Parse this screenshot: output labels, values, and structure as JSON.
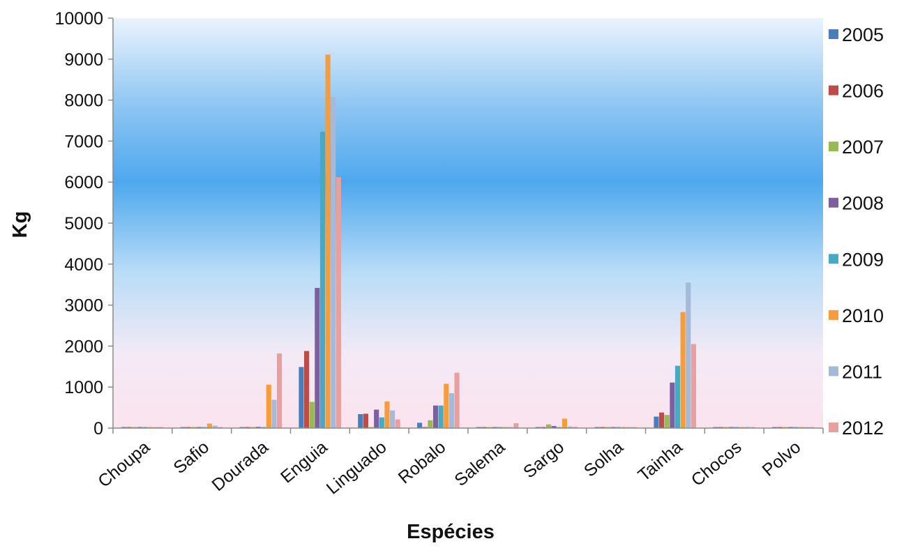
{
  "chart_data": {
    "type": "bar",
    "title": "",
    "xlabel": "Espécies",
    "ylabel": "Kg",
    "ylim": [
      0,
      10000
    ],
    "yticks": [
      0,
      1000,
      2000,
      3000,
      4000,
      5000,
      6000,
      7000,
      8000,
      9000,
      10000
    ],
    "grid": false,
    "legend_position": "right",
    "categories": [
      "Choupa",
      "Safio",
      "Dourada",
      "Enguia",
      "Linguado",
      "Robalo",
      "Salema",
      "Sargo",
      "Solha",
      "Tainha",
      "Chocos",
      "Polvo"
    ],
    "series": [
      {
        "name": "2005",
        "color": "#4a7ebb",
        "values": [
          0,
          0,
          0,
          1490,
          340,
          130,
          0,
          0,
          0,
          280,
          0,
          0
        ]
      },
      {
        "name": "2006",
        "color": "#be4b48",
        "values": [
          0,
          0,
          0,
          1880,
          350,
          0,
          0,
          0,
          0,
          380,
          0,
          0
        ]
      },
      {
        "name": "2007",
        "color": "#98b954",
        "values": [
          0,
          0,
          0,
          640,
          0,
          190,
          0,
          90,
          0,
          320,
          0,
          0
        ]
      },
      {
        "name": "2008",
        "color": "#7d5fa0",
        "values": [
          0,
          0,
          30,
          3420,
          450,
          550,
          0,
          50,
          0,
          1110,
          0,
          0
        ]
      },
      {
        "name": "2009",
        "color": "#46aac5",
        "values": [
          0,
          0,
          0,
          7230,
          260,
          550,
          0,
          0,
          0,
          1520,
          0,
          0
        ]
      },
      {
        "name": "2010",
        "color": "#f59d3d",
        "values": [
          0,
          110,
          1060,
          9110,
          650,
          1080,
          0,
          230,
          0,
          2830,
          0,
          0
        ]
      },
      {
        "name": "2011",
        "color": "#a5b9d9",
        "values": [
          0,
          60,
          690,
          8070,
          430,
          850,
          0,
          40,
          0,
          3550,
          30,
          0
        ]
      },
      {
        "name": "2012",
        "color": "#e8a09e",
        "values": [
          0,
          20,
          1820,
          6120,
          210,
          1350,
          120,
          30,
          0,
          2050,
          0,
          0
        ]
      }
    ]
  }
}
